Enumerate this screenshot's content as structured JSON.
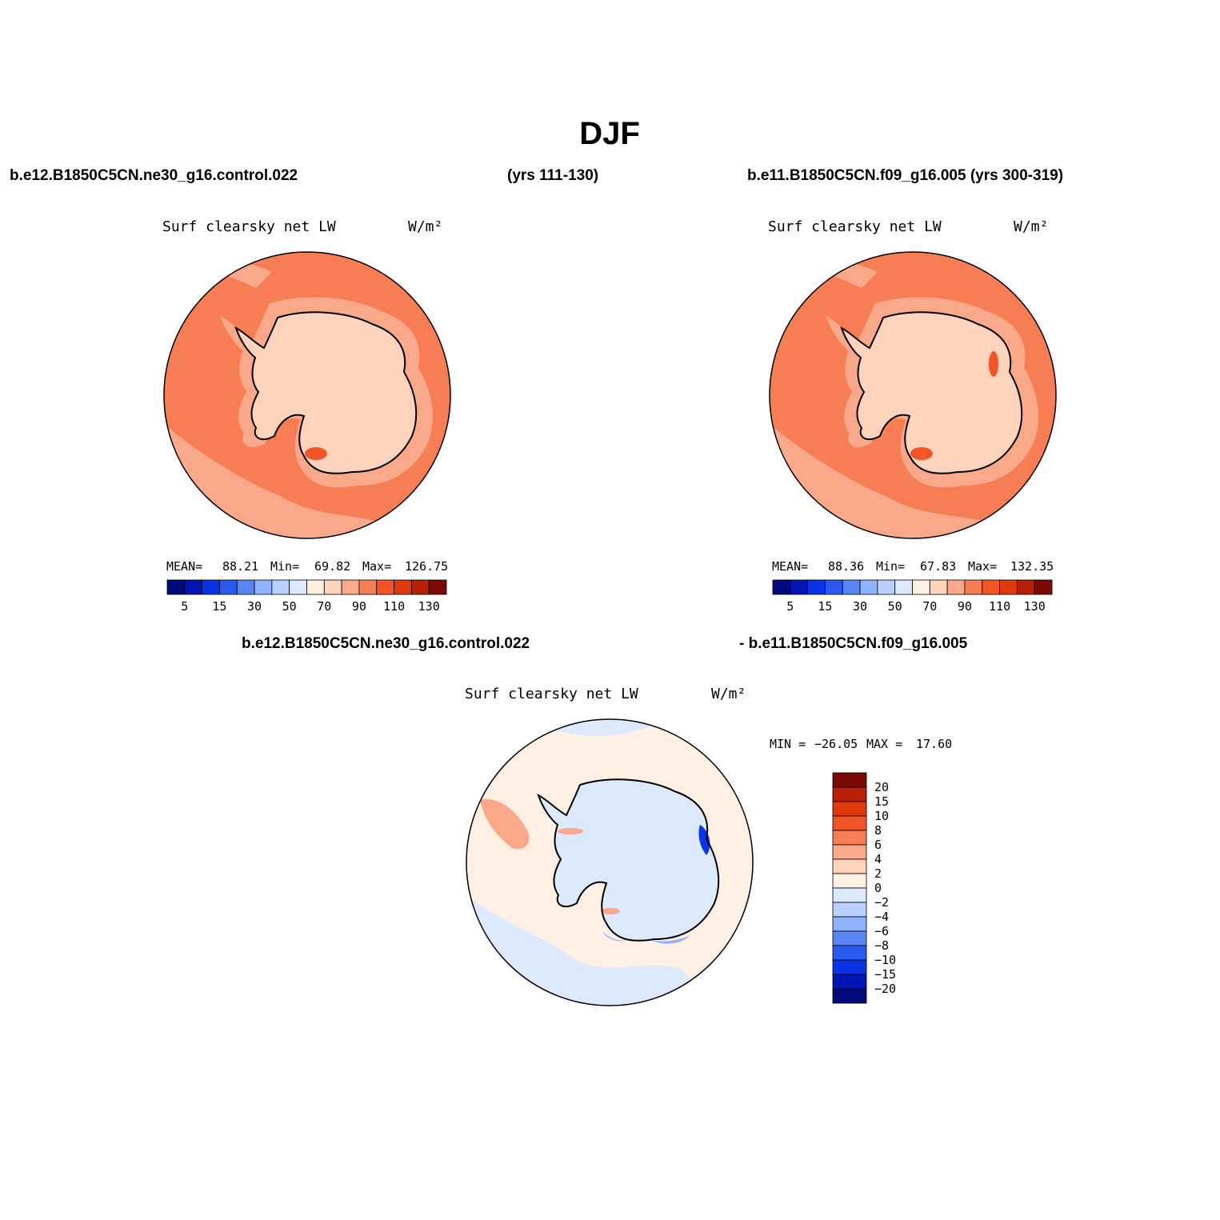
{
  "figure": {
    "season": "DJF",
    "case1_label": "b.e12.B1850C5CN.ne30_g16.control.022",
    "case1_years": "(yrs 111-130)",
    "case2_label": "b.e11.B1850C5CN.f09_g16.005 (yrs 300-319)",
    "diff_case1_label": "b.e12.B1850C5CN.ne30_g16.control.022",
    "diff_case2_label": "- b.e11.B1850C5CN.f09_g16.005"
  },
  "panels": [
    {
      "variable": "Surf clearsky net LW",
      "units": "W/m²",
      "stats": {
        "mean_label": "MEAN=",
        "mean": "88.21",
        "min_label": "Min=",
        "min": "69.82",
        "max_label": "Max=",
        "max": "126.75"
      }
    },
    {
      "variable": "Surf clearsky net LW",
      "units": "W/m²",
      "stats": {
        "mean_label": "MEAN=",
        "mean": "88.36",
        "min_label": "Min=",
        "min": "67.83",
        "max_label": "Max=",
        "max": "132.35"
      }
    },
    {
      "variable": "Surf clearsky net LW",
      "units": "W/m²",
      "stats": {
        "min_label": "MIN =",
        "min": "−26.05",
        "max_label": "MAX =",
        "max": "17.60"
      }
    }
  ],
  "colorbar_main": {
    "colors": [
      "#000a7a",
      "#0016b4",
      "#0a32e6",
      "#2a5af0",
      "#5a85f5",
      "#8fb0fa",
      "#bad0fc",
      "#dde9fe",
      "#fff0e3",
      "#fdd3bc",
      "#f9a88a",
      "#f77d55",
      "#f35526",
      "#e03a0c",
      "#b82008",
      "#7a0a02"
    ],
    "labels": [
      "5",
      "15",
      "30",
      "50",
      "70",
      "90",
      "110",
      "130"
    ]
  },
  "colorbar_diff": {
    "colors": [
      "#7a0a02",
      "#b82008",
      "#e03a0c",
      "#f35526",
      "#f77d55",
      "#f9a88a",
      "#fdd3bc",
      "#fff0e3",
      "#dde9fe",
      "#bad0fc",
      "#8fb0fa",
      "#5a85f5",
      "#2a5af0",
      "#0a32e6",
      "#0016b4",
      "#000a7a"
    ],
    "labels": [
      "20",
      "15",
      "10",
      "8",
      "6",
      "4",
      "2",
      "0",
      "−2",
      "−4",
      "−6",
      "−8",
      "−10",
      "−15",
      "−20"
    ]
  },
  "map_colors": {
    "ocean_field": "#f77d55",
    "low_belt": "#f9a88a",
    "continent": "#fdd3bc",
    "hotspot": "#f35526",
    "diff_base": "#fff0e3",
    "diff_neg_light": "#dde9fe",
    "diff_neg_mid": "#8fb0fa",
    "diff_neg_strong": "#0a32e6",
    "diff_pos": "#f9a88a",
    "coast": "#000000"
  }
}
